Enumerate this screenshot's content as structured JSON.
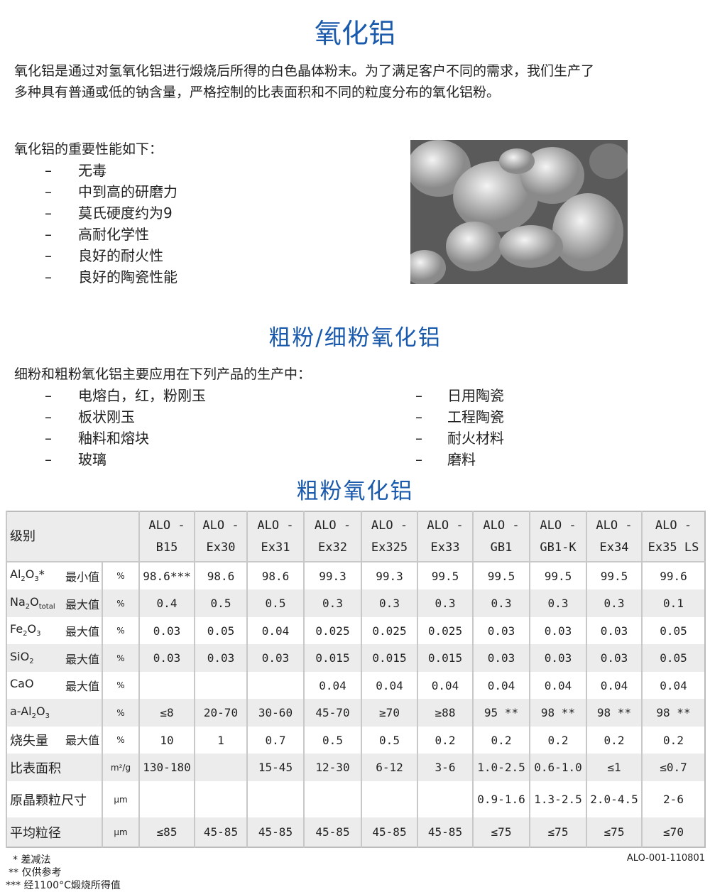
{
  "title": "氧化铝",
  "intro": [
    "氧化铝是通过对氢氧化铝进行煅烧后所得的白色晶体粉末。为了满足客户不同的需求，我们生产了",
    "多种具有普通或低的钠含量，严格控制的比表面积和不同的粒度分布的氧化铝粉。"
  ],
  "properties_heading": "氧化铝的重要性能如下：",
  "bullet": "–",
  "properties": [
    "无毒",
    "中到高的研磨力",
    "莫氏硬度约为9",
    "高耐化学性",
    "良好的耐火性",
    "良好的陶瓷性能"
  ],
  "section2_title": "粗粉/细粉氧化铝",
  "section2_intro": "细粉和粗粉氧化铝主要应用在下列产品的生产中：",
  "apps_left": [
    "电熔白，红，粉刚玉",
    "板状刚玉",
    "釉料和熔块",
    "玻璃"
  ],
  "apps_right": [
    "日用陶瓷",
    "工程陶瓷",
    "耐火材料",
    "磨料"
  ],
  "table_title": "粗粉氧化铝",
  "table": {
    "grade_label": "级别",
    "columns": [
      [
        "ALO -",
        "B15"
      ],
      [
        "ALO -",
        "Ex30"
      ],
      [
        "ALO -",
        "Ex31"
      ],
      [
        "ALO -",
        "Ex32"
      ],
      [
        "ALO -",
        "Ex325"
      ],
      [
        "ALO -",
        "Ex33"
      ],
      [
        "ALO -",
        "GB1"
      ],
      [
        "ALO -",
        "GB1-K"
      ],
      [
        "ALO -",
        "Ex34"
      ],
      [
        "ALO -",
        "Ex35 LS"
      ]
    ],
    "rows": [
      {
        "label": [
          [
            "Al",
            ""
          ],
          [
            "2",
            "s"
          ],
          [
            "O",
            ""
          ],
          [
            "3",
            "s"
          ],
          [
            "*",
            ""
          ]
        ],
        "qual": "最小值",
        "unit": "%",
        "values": [
          "98.6***",
          "98.6",
          "98.6",
          "99.3",
          "99.3",
          "99.5",
          "99.5",
          "99.5",
          "99.5",
          "99.6"
        ]
      },
      {
        "label": [
          [
            "Na",
            ""
          ],
          [
            "2",
            "s"
          ],
          [
            "O",
            ""
          ],
          [
            "total",
            "s"
          ]
        ],
        "qual": "最大值",
        "unit": "%",
        "values": [
          "0.4",
          "0.5",
          "0.5",
          "0.3",
          "0.3",
          "0.3",
          "0.3",
          "0.3",
          "0.3",
          "0.1"
        ]
      },
      {
        "label": [
          [
            "Fe",
            ""
          ],
          [
            "2",
            "s"
          ],
          [
            "O",
            ""
          ],
          [
            "3",
            "s"
          ]
        ],
        "qual": "最大值",
        "unit": "%",
        "values": [
          "0.03",
          "0.05",
          "0.04",
          "0.025",
          "0.025",
          "0.025",
          "0.03",
          "0.03",
          "0.03",
          "0.05"
        ]
      },
      {
        "label": [
          [
            "SiO",
            ""
          ],
          [
            "2",
            "s"
          ]
        ],
        "qual": "最大值",
        "unit": "%",
        "values": [
          "0.03",
          "0.03",
          "0.03",
          "0.015",
          "0.015",
          "0.015",
          "0.03",
          "0.03",
          "0.03",
          "0.05"
        ]
      },
      {
        "label": [
          [
            "CaO",
            ""
          ]
        ],
        "qual": "最大值",
        "unit": "%",
        "values": [
          "",
          "",
          "",
          "0.04",
          "0.04",
          "0.04",
          "0.04",
          "0.04",
          "0.04",
          "0.04"
        ]
      },
      {
        "label": [
          [
            "a-Al",
            ""
          ],
          [
            "2",
            "s"
          ],
          [
            "O",
            ""
          ],
          [
            "3",
            "s"
          ]
        ],
        "qual": "",
        "unit": "%",
        "values": [
          "≤8",
          "20-70",
          "30-60",
          "45-70",
          "≥70",
          "≥88",
          "95 **",
          "98 **",
          "98 **",
          "98 **"
        ]
      },
      {
        "label": [
          [
            "烧失量",
            ""
          ]
        ],
        "qual": "最大值",
        "unit": "%",
        "values": [
          "10",
          "1",
          "0.7",
          "0.5",
          "0.5",
          "0.2",
          "0.2",
          "0.2",
          "0.2",
          "0.2"
        ]
      },
      {
        "label": [
          [
            "比表面积",
            ""
          ]
        ],
        "qual": "",
        "unit": "m²/g",
        "values": [
          "130-180",
          "",
          "15-45",
          "12-30",
          "6-12",
          "3-6",
          "1.0-2.5",
          "0.6-1.0",
          "≤1",
          "≤0.7"
        ]
      },
      {
        "label": [
          [
            "原晶颗粒尺寸",
            ""
          ]
        ],
        "qual": "",
        "unit": "μm",
        "values": [
          "",
          "",
          "",
          "",
          "",
          "",
          "0.9-1.6",
          "1.3-2.5",
          "2.0-4.5",
          "2-6"
        ]
      },
      {
        "label": [
          [
            "平均粒径",
            ""
          ]
        ],
        "qual": "",
        "unit": "μm",
        "values": [
          "≤85",
          "45-85",
          "45-85",
          "45-85",
          "45-85",
          "45-85",
          "≤75",
          "≤75",
          "≤75",
          "≤70"
        ]
      }
    ]
  },
  "footnotes": [
    "* 差减法",
    "** 仅供参考",
    "*** 经1100°C煅烧所得值"
  ],
  "doc_code": "ALO-001-110801",
  "colors": {
    "title": "#1a5aad"
  }
}
